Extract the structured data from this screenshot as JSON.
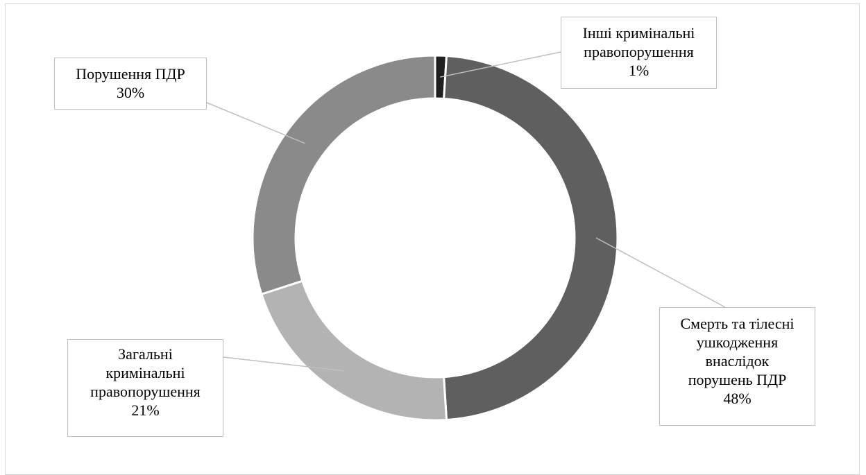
{
  "chart_data": {
    "type": "pie",
    "variant": "doughnut",
    "title": "",
    "slices": [
      {
        "label": "Інші кримінальні\nправопорушення",
        "value": 1,
        "value_label": "1%",
        "color": "#1f1f1f"
      },
      {
        "label": "Смерть та тілесні\nушкодження\nвнаслідок\nпорушень ПДР",
        "value": 48,
        "value_label": "48%",
        "color": "#5f5f5f"
      },
      {
        "label": "Загальні\nкримінальні\nправопорушення",
        "value": 21,
        "value_label": "21%",
        "color": "#b3b3b3"
      },
      {
        "label": "Порушення ПДР",
        "value": 30,
        "value_label": "30%",
        "color": "#8a8a8a"
      }
    ],
    "legend": false
  }
}
